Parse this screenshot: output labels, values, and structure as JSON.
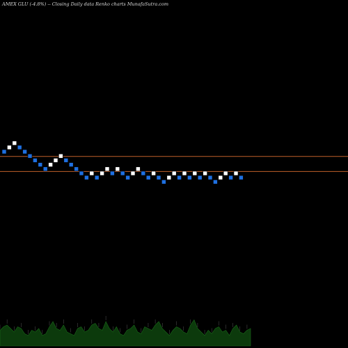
{
  "header": {
    "caption": "AMEX  GLU (-4.8%) -- Closing Daily data  Renko  charts MunafaSutra.com"
  },
  "colors": {
    "background": "#000000",
    "up_brick": "#ffffff",
    "down_brick": "#1e6fe0",
    "ref_line": "#c0602a",
    "volume_fill": "#0c3a0c",
    "volume_line": "#1a6a1a"
  },
  "chart_data": {
    "type": "renko",
    "title": "AMEX  GLU (-4.8%) -- Closing Daily data  Renko  charts MunafaSutra.com",
    "xlabel": "",
    "ylabel": "",
    "grid": false,
    "brick_levels": [
      5,
      6,
      7,
      6,
      5,
      4,
      3,
      2,
      1,
      2,
      3,
      4,
      3,
      2,
      1,
      0,
      -1,
      0,
      -1,
      0,
      1,
      0,
      1,
      0,
      -1,
      0,
      1,
      0,
      -1,
      0,
      -1,
      -2,
      -1,
      0,
      -1,
      0,
      -1,
      0,
      -1,
      0,
      -1,
      -2,
      -1,
      0,
      -1,
      0,
      -1
    ],
    "brick_direction": [
      "down",
      "up",
      "up",
      "down",
      "down",
      "down",
      "down",
      "down",
      "down",
      "up",
      "up",
      "up",
      "down",
      "down",
      "down",
      "down",
      "down",
      "up",
      "down",
      "up",
      "up",
      "down",
      "up",
      "down",
      "down",
      "up",
      "up",
      "down",
      "down",
      "up",
      "down",
      "down",
      "up",
      "up",
      "down",
      "up",
      "down",
      "up",
      "down",
      "up",
      "down",
      "down",
      "up",
      "up",
      "down",
      "up",
      "down"
    ],
    "reference_levels": [
      4.4,
      0.9
    ],
    "volume": [
      0.45,
      0.55,
      0.6,
      0.5,
      0.4,
      0.55,
      0.5,
      0.35,
      0.3,
      0.45,
      0.4,
      0.5,
      0.3,
      0.35,
      0.55,
      0.7,
      0.5,
      0.45,
      0.6,
      0.4,
      0.35,
      0.3,
      0.5,
      0.55,
      0.4,
      0.45,
      0.6,
      0.65,
      0.5,
      0.45,
      0.7,
      0.5,
      0.4,
      0.55,
      0.35,
      0.3,
      0.45,
      0.5,
      0.6,
      0.4,
      0.35,
      0.55,
      0.5,
      0.45,
      0.6,
      0.7,
      0.5,
      0.4,
      0.3,
      0.45,
      0.55,
      0.5,
      0.4,
      0.35,
      0.6,
      0.75,
      0.5,
      0.4,
      0.3,
      0.45,
      0.35,
      0.5,
      0.55,
      0.4,
      0.45,
      0.3,
      0.5,
      0.6,
      0.4,
      0.35,
      0.45,
      0.5
    ]
  }
}
